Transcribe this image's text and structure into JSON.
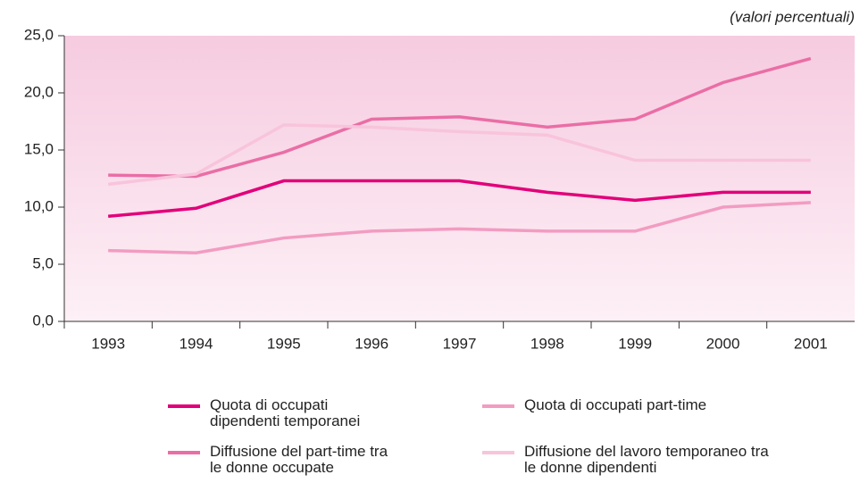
{
  "chart_data": {
    "type": "line",
    "annotation": "(valori percentuali)",
    "categories": [
      "1993",
      "1994",
      "1995",
      "1996",
      "1997",
      "1998",
      "1999",
      "2000",
      "2001"
    ],
    "series": [
      {
        "name": "Quota di occupati dipendenti temporanei",
        "color": "#e2007a",
        "values": [
          9.2,
          9.9,
          12.3,
          12.3,
          12.3,
          11.3,
          10.6,
          11.3,
          11.3
        ]
      },
      {
        "name": "Quota di occupati part-time",
        "color": "#f29cc2",
        "values": [
          6.2,
          6.0,
          7.3,
          7.9,
          8.1,
          7.9,
          7.9,
          10.0,
          10.4
        ]
      },
      {
        "name": "Diffusione del part-time tra le donne occupate",
        "color": "#ea6ea6",
        "values": [
          12.8,
          12.7,
          14.8,
          17.7,
          17.9,
          17.0,
          17.7,
          20.9,
          23.0
        ]
      },
      {
        "name": "Diffusione del lavoro temporaneo tra le donne dipendenti",
        "color": "#f8c4db",
        "values": [
          12.0,
          12.9,
          17.2,
          17.0,
          16.6,
          16.3,
          14.1,
          14.1,
          14.1
        ]
      }
    ],
    "ylim": [
      0,
      25
    ],
    "yticks": [
      {
        "value": 0,
        "label": "0,0"
      },
      {
        "value": 5,
        "label": "5,0"
      },
      {
        "value": 10,
        "label": "10,0"
      },
      {
        "value": 15,
        "label": "15,0"
      },
      {
        "value": 20,
        "label": "20,0"
      },
      {
        "value": 25,
        "label": "25,0"
      }
    ]
  }
}
